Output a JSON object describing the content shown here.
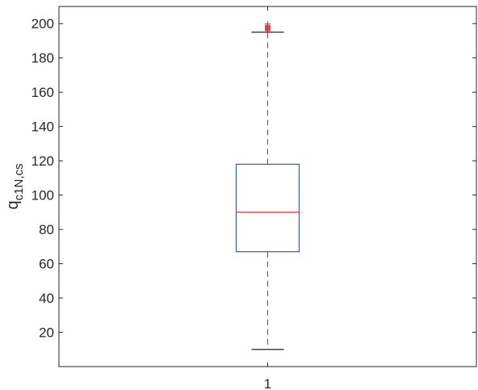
{
  "chart_data": {
    "type": "boxplot",
    "categories": [
      "1"
    ],
    "ylabel_base": "q",
    "ylabel_subscript": "c1N,cs",
    "xlim": [
      0.5,
      1.5
    ],
    "ylim": [
      0,
      210
    ],
    "yticks": [
      20,
      40,
      60,
      80,
      100,
      120,
      140,
      160,
      180,
      200
    ],
    "yticklabels": [
      "20",
      "40",
      "60",
      "80",
      "100",
      "120",
      "140",
      "160",
      "180",
      "200"
    ],
    "boxes": [
      {
        "category": "1",
        "whisker_low": 10,
        "q1": 67,
        "median": 90,
        "q3": 118,
        "whisker_high": 195,
        "outliers": [
          196,
          196.5,
          197,
          197.5,
          198,
          198.5,
          199,
          199.5,
          200
        ]
      }
    ],
    "grid": false,
    "colors": {
      "box": "#3f5aa8",
      "median": "#e0302f",
      "whisker": "#555555",
      "outlier": "#e0302f",
      "axis": "#262626"
    }
  }
}
